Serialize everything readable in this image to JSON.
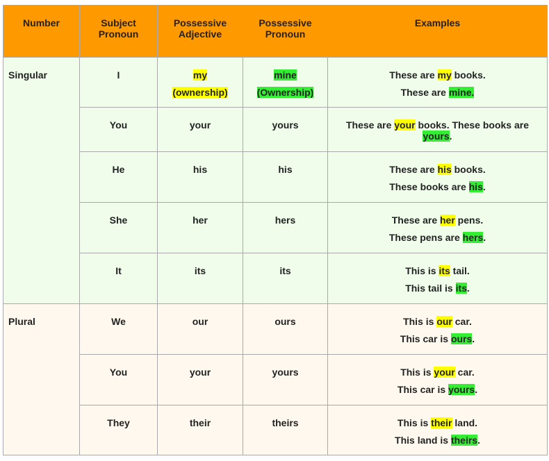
{
  "table": {
    "header": [
      "Number",
      "Subject Pronoun",
      "Possessive Adjective",
      "Possessive Pronoun",
      "Examples"
    ],
    "groups": [
      {
        "number": "Singular",
        "background": "#f0fdeb",
        "rows": [
          {
            "subject": "I",
            "adjective": [
              [
                {
                  "text": "my",
                  "highlight": "#ffff00"
                }
              ],
              [
                {
                  "text": "(ownership)",
                  "highlight": "#ffff00"
                }
              ]
            ],
            "pronoun": [
              [
                {
                  "text": "mine",
                  "highlight": "#33ee33"
                }
              ],
              [
                {
                  "text": "(Ownership)",
                  "highlight": "#33ee33"
                }
              ]
            ],
            "examples": [
              [
                "These are ",
                {
                  "text": "my",
                  "highlight": "#ffff00"
                },
                " books."
              ],
              [
                "These are ",
                {
                  "text": "mine.",
                  "highlight": "#33ee33"
                }
              ]
            ]
          },
          {
            "subject": "You",
            "adjective": "your",
            "pronoun": "yours",
            "examples": [
              [
                "These are ",
                {
                  "text": "your",
                  "highlight": "#ffff00"
                },
                " books. These books are ",
                {
                  "text": "yours",
                  "highlight": "#33ee33"
                },
                "."
              ]
            ]
          },
          {
            "subject": "He",
            "adjective": "his",
            "pronoun": "his",
            "examples": [
              [
                "These are ",
                {
                  "text": "his",
                  "highlight": "#ffff00"
                },
                " books."
              ],
              [
                "These books are ",
                {
                  "text": "his",
                  "highlight": "#33ee33"
                },
                "."
              ]
            ]
          },
          {
            "subject": "She",
            "adjective": "her",
            "pronoun": "hers",
            "examples": [
              [
                "These are ",
                {
                  "text": "her",
                  "highlight": "#ffff00"
                },
                " pens."
              ],
              [
                "These pens are ",
                {
                  "text": "hers",
                  "highlight": "#33ee33"
                },
                "."
              ]
            ]
          },
          {
            "subject": "It",
            "adjective": "its",
            "pronoun": "its",
            "examples": [
              [
                "This is ",
                {
                  "text": "its",
                  "highlight": "#ffff00"
                },
                " tail."
              ],
              [
                "This tail is ",
                {
                  "text": "its",
                  "highlight": "#33ee33"
                },
                "."
              ]
            ]
          }
        ]
      },
      {
        "number": "Plural",
        "background": "#fff8ee",
        "rows": [
          {
            "subject": "We",
            "adjective": "our",
            "pronoun": "ours",
            "examples": [
              [
                "This is ",
                {
                  "text": "our",
                  "highlight": "#ffff00"
                },
                " car."
              ],
              [
                "This car is ",
                {
                  "text": "ours",
                  "highlight": "#33ee33"
                },
                "."
              ]
            ]
          },
          {
            "subject": "You",
            "adjective": "your",
            "pronoun": "yours",
            "examples": [
              [
                "This is ",
                {
                  "text": "your",
                  "highlight": "#ffff00"
                },
                " car."
              ],
              [
                "This car is ",
                {
                  "text": "yours",
                  "highlight": "#33ee33"
                },
                "."
              ]
            ]
          },
          {
            "subject": "They",
            "adjective": "their",
            "pronoun": "theirs",
            "examples": [
              [
                "This is ",
                {
                  "text": "their",
                  "highlight": "#ffff00"
                },
                " land."
              ],
              [
                "This land is ",
                {
                  "text": "theirs",
                  "highlight": "#33ee33"
                },
                "."
              ]
            ]
          }
        ]
      }
    ]
  }
}
